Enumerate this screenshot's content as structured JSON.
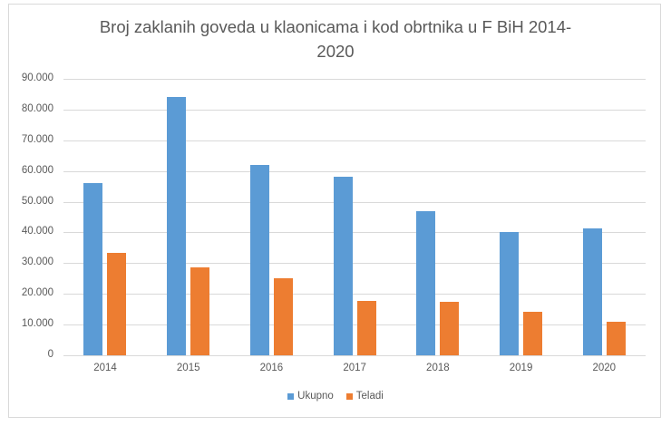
{
  "chart_data": {
    "type": "bar",
    "title": "Broj zaklanih goveda u klaonicama i kod obrtnika u F BiH 2014-2020",
    "title_lines": [
      "Broj zaklanih goveda u klaonicama i kod obrtnika u F BiH 2014-",
      "2020"
    ],
    "xlabel": "",
    "ylabel": "",
    "categories": [
      "2014",
      "2015",
      "2016",
      "2017",
      "2018",
      "2019",
      "2020"
    ],
    "series": [
      {
        "name": "Ukupno",
        "color": "#5b9bd5",
        "values": [
          56000,
          84200,
          62100,
          58000,
          46900,
          40000,
          41200
        ]
      },
      {
        "name": "Teladi",
        "color": "#ed7d31",
        "values": [
          33300,
          28600,
          25100,
          17600,
          17300,
          14100,
          11000
        ]
      }
    ],
    "ylim": [
      0,
      90000
    ],
    "yticks": [
      0,
      10000,
      20000,
      30000,
      40000,
      50000,
      60000,
      70000,
      80000,
      90000
    ],
    "ytick_labels": [
      "0",
      "10.000",
      "20.000",
      "30.000",
      "40.000",
      "50.000",
      "60.000",
      "70.000",
      "80.000",
      "90.000"
    ],
    "grid": true,
    "legend_position": "bottom"
  }
}
